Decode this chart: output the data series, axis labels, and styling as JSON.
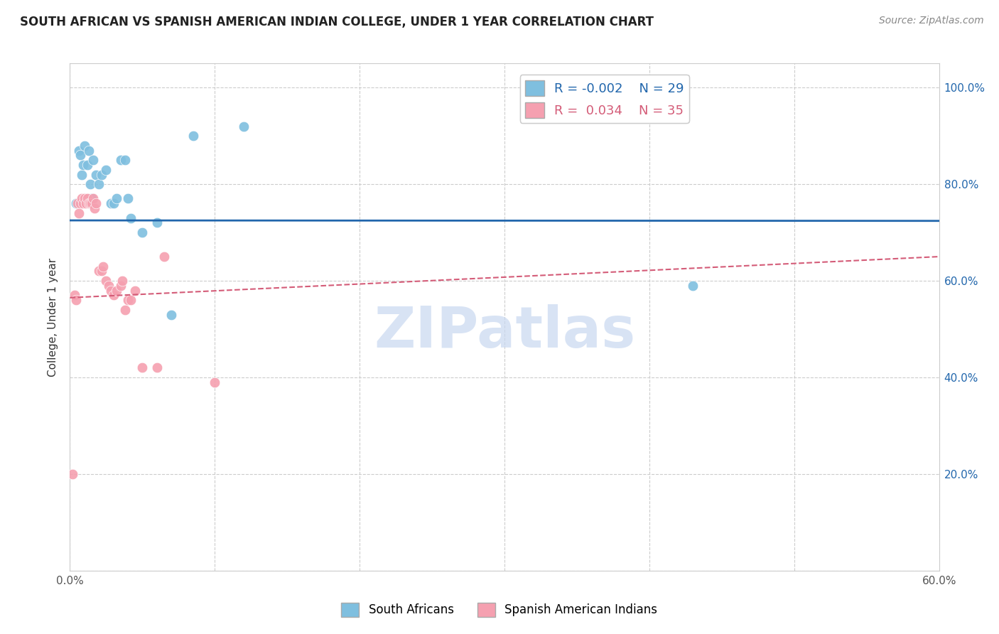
{
  "title": "SOUTH AFRICAN VS SPANISH AMERICAN INDIAN COLLEGE, UNDER 1 YEAR CORRELATION CHART",
  "source": "Source: ZipAtlas.com",
  "ylabel": "College, Under 1 year",
  "xmin": 0.0,
  "xmax": 0.6,
  "ymin": 0.0,
  "ymax": 1.05,
  "xticks": [
    0.0,
    0.1,
    0.2,
    0.3,
    0.4,
    0.5,
    0.6
  ],
  "xtick_labels": [
    "0.0%",
    "",
    "",
    "",
    "",
    "",
    "60.0%"
  ],
  "yticks": [
    0.0,
    0.2,
    0.4,
    0.6,
    0.8,
    1.0
  ],
  "ytick_labels_right": [
    "",
    "20.0%",
    "40.0%",
    "60.0%",
    "80.0%",
    "100.0%"
  ],
  "legend_blue_r": "-0.002",
  "legend_blue_n": "29",
  "legend_pink_r": "0.034",
  "legend_pink_n": "35",
  "blue_color": "#7fbfdf",
  "pink_color": "#f5a0b0",
  "trendline_blue_color": "#2166ac",
  "trendline_pink_color": "#d45c78",
  "blue_scatter_x": [
    0.004,
    0.006,
    0.007,
    0.008,
    0.009,
    0.01,
    0.012,
    0.013,
    0.014,
    0.015,
    0.016,
    0.018,
    0.02,
    0.022,
    0.025,
    0.028,
    0.03,
    0.032,
    0.035,
    0.038,
    0.04,
    0.042,
    0.05,
    0.06,
    0.07,
    0.085,
    0.12,
    0.43,
    0.35
  ],
  "blue_scatter_y": [
    0.76,
    0.87,
    0.86,
    0.82,
    0.84,
    0.88,
    0.84,
    0.87,
    0.8,
    0.77,
    0.85,
    0.82,
    0.8,
    0.82,
    0.83,
    0.76,
    0.76,
    0.77,
    0.85,
    0.85,
    0.77,
    0.73,
    0.7,
    0.72,
    0.53,
    0.9,
    0.92,
    0.59,
    1.0
  ],
  "pink_scatter_x": [
    0.002,
    0.003,
    0.004,
    0.005,
    0.006,
    0.007,
    0.008,
    0.009,
    0.01,
    0.011,
    0.012,
    0.013,
    0.014,
    0.015,
    0.016,
    0.017,
    0.018,
    0.02,
    0.022,
    0.023,
    0.025,
    0.027,
    0.028,
    0.03,
    0.032,
    0.035,
    0.036,
    0.038,
    0.04,
    0.042,
    0.045,
    0.05,
    0.06,
    0.065,
    0.1
  ],
  "pink_scatter_y": [
    0.2,
    0.57,
    0.56,
    0.76,
    0.74,
    0.76,
    0.77,
    0.76,
    0.77,
    0.76,
    0.77,
    0.76,
    0.76,
    0.76,
    0.77,
    0.75,
    0.76,
    0.62,
    0.62,
    0.63,
    0.6,
    0.59,
    0.58,
    0.57,
    0.58,
    0.59,
    0.6,
    0.54,
    0.56,
    0.56,
    0.58,
    0.42,
    0.42,
    0.65,
    0.39
  ],
  "blue_trendline_x": [
    0.0,
    0.6
  ],
  "blue_trendline_y": [
    0.725,
    0.724
  ],
  "pink_trendline_x": [
    0.0,
    0.6
  ],
  "pink_trendline_y": [
    0.565,
    0.65
  ],
  "background_color": "#ffffff",
  "grid_color": "#cccccc",
  "watermark_color": "#c8d8f0",
  "watermark": "ZIPatlas"
}
